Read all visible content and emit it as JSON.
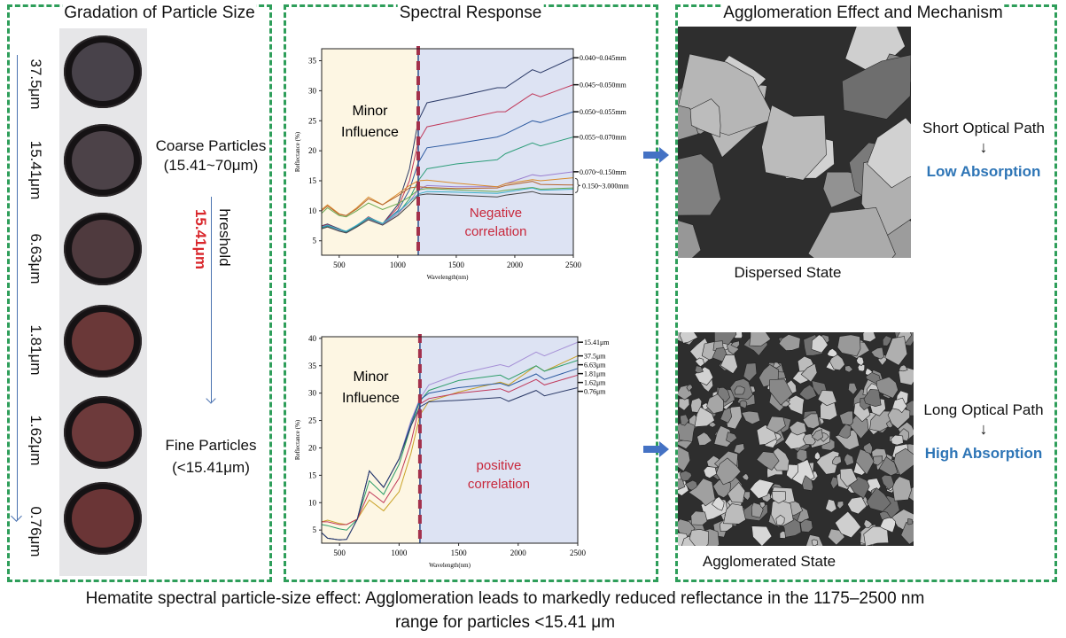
{
  "panels": {
    "particle_size": {
      "title": "Gradation of Particle Size",
      "sample_labels": [
        "37.5μm",
        "15.41μm",
        "6.63μm",
        "1.81μm",
        "1.62μm",
        "0.76μm"
      ],
      "sample_colors": [
        "#48424a",
        "#4c4248",
        "#4f3a3e",
        "#6a3838",
        "#6d3a3b",
        "#6a3536"
      ],
      "coarse_label": "Coarse Particles",
      "coarse_range": "(15.41~70μm)",
      "threshold_value": "15.41μm",
      "threshold_label": "hreshold",
      "fine_label": "Fine Particles",
      "fine_range": "(<15.41μm)"
    },
    "spectral": {
      "title": "Spectral Response"
    },
    "agglomeration": {
      "title": "Agglomeration Effect and Mechanism",
      "dispersed_caption": "Dispersed State",
      "agglomerated_caption": "Agglomerated State",
      "short_path": "Short Optical Path",
      "arrow_glyph": "↓",
      "low_absorption": "Low Absorption",
      "long_path": "Long Optical Path",
      "high_absorption": "High Absorption"
    }
  },
  "caption": {
    "line1": "Hematite spectral particle-size effect: Agglomeration leads to markedly reduced reflectance in the 1175–2500 nm",
    "line2": "range for particles <15.41 μm"
  },
  "colors": {
    "panel_border": "#2e9e5a",
    "threshold_red": "#d9262b",
    "absorption_blue": "#2e75b6",
    "region_left": "#fdf6e3",
    "region_right": "#dde3f3"
  },
  "chart_data": [
    {
      "type": "line",
      "xlabel": "Wavelength(nm)",
      "ylabel": "Reflectance (%)",
      "xlim": [
        350,
        2500
      ],
      "ylim": [
        2.6,
        37
      ],
      "xticks": [
        500,
        1000,
        1500,
        2000,
        2500
      ],
      "yticks": [
        5,
        10,
        15,
        20,
        25,
        30,
        35
      ],
      "threshold_x": 1175,
      "annotations": {
        "left": [
          "Minor",
          "Influence"
        ],
        "right": [
          "Negative",
          "correlation"
        ]
      },
      "group_label": "0.150~3.000mm",
      "x": [
        350,
        400,
        500,
        560,
        650,
        750,
        870,
        1000,
        1100,
        1175,
        1250,
        1500,
        1850,
        1920,
        2150,
        2220,
        2500
      ],
      "series": [
        {
          "name": "0.040~0.045mm",
          "color": "#2b3a67",
          "values": [
            7.5,
            7.8,
            7.0,
            6.5,
            7.5,
            9.0,
            7.8,
            11,
            17,
            25,
            28,
            29,
            30.5,
            30.5,
            33.5,
            33,
            35.5
          ]
        },
        {
          "name": "0.045~0.050mm",
          "color": "#c0395a",
          "values": [
            7.4,
            7.7,
            6.9,
            6.5,
            7.5,
            9.0,
            7.8,
            10.5,
            15,
            21.5,
            24,
            25,
            26.5,
            26.5,
            29.5,
            29,
            31
          ]
        },
        {
          "name": "0.050~0.055mm",
          "color": "#2c5aa0",
          "values": [
            7.2,
            7.5,
            6.8,
            6.5,
            7.5,
            8.8,
            7.8,
            10,
            13.5,
            18,
            20.5,
            21.2,
            22.3,
            22.8,
            25,
            24.7,
            26.5
          ]
        },
        {
          "name": "0.055~0.070mm",
          "color": "#2e9e7a",
          "values": [
            7.1,
            7.4,
            6.8,
            6.4,
            7.4,
            8.7,
            7.8,
            9.5,
            12,
            15,
            17,
            17.8,
            18.5,
            19.5,
            21.3,
            20.8,
            22.3
          ]
        },
        {
          "name": "0.070~0.150mm",
          "color": "#9b7fd0",
          "values": [
            7.0,
            7.3,
            6.7,
            6.3,
            7.3,
            8.6,
            7.7,
            9.5,
            11.5,
            13.5,
            14.2,
            14,
            14,
            14.5,
            16,
            15.8,
            16.5
          ]
        },
        {
          "group": "0.150~3.000mm",
          "color": "#d98a2b",
          "values": [
            10.2,
            11,
            9.5,
            9.2,
            10.5,
            12.3,
            11,
            12.8,
            14.2,
            15,
            15.1,
            14.6,
            14,
            14.5,
            15.2,
            15,
            15.5
          ]
        },
        {
          "group": "0.150~3.000mm",
          "color": "#b5652f",
          "values": [
            10,
            10.8,
            9.4,
            9.2,
            10.3,
            12,
            11,
            12.5,
            13.8,
            14,
            13.9,
            13.7,
            13.8,
            14.2,
            14.9,
            14.4,
            14.3
          ]
        },
        {
          "group": "0.150~3.000mm",
          "color": "#6aa84f",
          "values": [
            9.6,
            10.5,
            9.2,
            9,
            10,
            11.3,
            10.2,
            11.2,
            12.3,
            13.5,
            13.7,
            13.5,
            13.2,
            13.4,
            13.9,
            13.6,
            13.8
          ]
        },
        {
          "group": "0.150~3.000mm",
          "color": "#3ab0c8",
          "values": [
            7.3,
            7.6,
            6.9,
            6.6,
            7.6,
            8.9,
            7.9,
            9.8,
            11.5,
            12.8,
            13.2,
            13.1,
            12.9,
            13.1,
            13.8,
            13.4,
            13.6
          ]
        },
        {
          "group": "0.150~3.000mm",
          "color": "#444444",
          "values": [
            7.0,
            7.3,
            6.6,
            6.3,
            7.3,
            8.5,
            7.6,
            9.2,
            11,
            12.6,
            12.8,
            12.6,
            12.3,
            12.6,
            13.2,
            12.8,
            12.7
          ]
        }
      ]
    },
    {
      "type": "line",
      "xlabel": "Wavelength(nm)",
      "ylabel": "Reflectance (%)",
      "xlim": [
        350,
        2500
      ],
      "ylim": [
        2.6,
        40.3
      ],
      "xticks": [
        500,
        1000,
        1500,
        2000,
        2500
      ],
      "yticks": [
        5,
        10,
        15,
        20,
        25,
        30,
        35,
        40
      ],
      "threshold_x": 1175,
      "annotations": {
        "left": [
          "Minor",
          "Influence"
        ],
        "right": [
          "positive",
          "correlation"
        ]
      },
      "x": [
        350,
        400,
        500,
        560,
        650,
        750,
        870,
        1000,
        1100,
        1175,
        1250,
        1500,
        1850,
        1920,
        2150,
        2220,
        2500
      ],
      "series": [
        {
          "name": "15.41μm",
          "color": "#a58fd6",
          "values": [
            4.5,
            3.5,
            3.2,
            3.3,
            7,
            15.8,
            12.8,
            18,
            25,
            29,
            31.5,
            33.5,
            35.2,
            34.8,
            37.5,
            36.8,
            39.3
          ]
        },
        {
          "name": "37.5μm",
          "color": "#c9a227",
          "values": [
            6.5,
            6.8,
            6.2,
            6,
            7,
            10.5,
            8.5,
            12,
            19,
            26,
            28.5,
            30.2,
            32,
            31.5,
            35,
            34,
            36.8
          ]
        },
        {
          "name": "6.63μm",
          "color": "#2e9e6a",
          "values": [
            6,
            5.8,
            5.2,
            5,
            7,
            14,
            11.5,
            17,
            24,
            28.5,
            30.5,
            32.3,
            33.3,
            32.5,
            35,
            34,
            36
          ]
        },
        {
          "name": "1.81μm",
          "color": "#2c5aa0",
          "values": [
            4.5,
            3.5,
            3.2,
            3.3,
            7,
            15.8,
            12.8,
            18,
            24.5,
            28.8,
            30,
            31,
            31.8,
            31.3,
            33.5,
            32.5,
            34.5
          ]
        },
        {
          "name": "1.62μm",
          "color": "#c0395a",
          "values": [
            6.5,
            6.5,
            6,
            6,
            7,
            12,
            10,
            14.5,
            21,
            28,
            29,
            30,
            30.8,
            30.2,
            32.5,
            31.5,
            33.3
          ]
        },
        {
          "name": "0.76μm",
          "color": "#2b3a67",
          "values": [
            4.5,
            3.5,
            3.2,
            3.3,
            7,
            15.8,
            12.8,
            18,
            24,
            27.5,
            28.4,
            28.7,
            29.2,
            28.5,
            30.5,
            29.5,
            31
          ]
        }
      ]
    }
  ]
}
